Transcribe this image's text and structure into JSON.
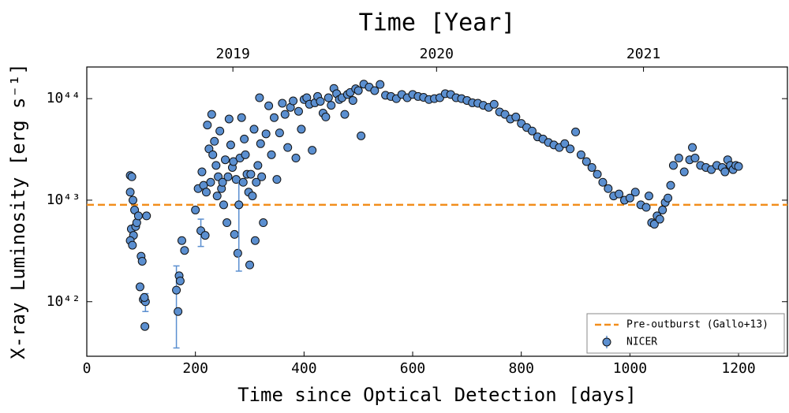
{
  "chart_data": {
    "type": "scatter",
    "title": "Time [Year]",
    "x_label": "Time since Optical Detection [days]",
    "y_label": "X-ray Luminosity [erg s⁻¹]",
    "log_y": true,
    "xlim": [
      0,
      1290
    ],
    "ylim": [
      2.9e+41,
      2.05e+44
    ],
    "xticks": [
      0,
      200,
      400,
      600,
      800,
      1000,
      1200
    ],
    "yticks": [
      {
        "value": 1e+42,
        "label": "10⁴²"
      },
      {
        "value": 1e+43,
        "label": "10⁴³"
      },
      {
        "value": 1e+44,
        "label": "10⁴⁴"
      }
    ],
    "top_ticks": [
      {
        "value": 269,
        "label": "2019"
      },
      {
        "value": 644,
        "label": "2020"
      },
      {
        "value": 1025,
        "label": "2021"
      }
    ],
    "legend": "lower right",
    "hline": {
      "value": 9e+42,
      "label": "Pre-outburst (Gallo+13)",
      "color": "#f28e1c"
    },
    "series": [
      {
        "name": "NICER",
        "color": "#5b8fd0",
        "x": [
          80,
          83,
          80,
          85,
          88,
          82,
          86,
          80,
          84,
          90,
          92,
          95,
          100,
          102,
          98,
          104,
          108,
          107,
          110,
          106,
          165,
          168,
          170,
          172,
          175,
          180,
          200,
          205,
          210,
          212,
          215,
          218,
          220,
          222,
          225,
          228,
          230,
          232,
          235,
          238,
          240,
          242,
          245,
          248,
          250,
          252,
          255,
          258,
          260,
          262,
          265,
          268,
          270,
          272,
          275,
          278,
          280,
          282,
          285,
          288,
          290,
          292,
          295,
          298,
          300,
          302,
          305,
          308,
          310,
          312,
          315,
          318,
          320,
          322,
          325,
          330,
          335,
          340,
          345,
          350,
          355,
          360,
          365,
          370,
          375,
          380,
          385,
          390,
          395,
          400,
          405,
          410,
          415,
          420,
          425,
          430,
          435,
          440,
          445,
          450,
          455,
          460,
          465,
          470,
          475,
          480,
          485,
          490,
          495,
          500,
          505,
          510,
          520,
          530,
          540,
          550,
          560,
          570,
          580,
          590,
          600,
          610,
          620,
          630,
          640,
          650,
          660,
          670,
          680,
          690,
          700,
          710,
          720,
          730,
          740,
          750,
          760,
          770,
          780,
          790,
          800,
          810,
          820,
          830,
          840,
          850,
          860,
          870,
          880,
          890,
          900,
          910,
          920,
          930,
          940,
          950,
          960,
          970,
          980,
          990,
          1000,
          1010,
          1020,
          1030,
          1035,
          1040,
          1045,
          1050,
          1055,
          1060,
          1065,
          1070,
          1075,
          1080,
          1090,
          1100,
          1110,
          1115,
          1120,
          1130,
          1140,
          1150,
          1160,
          1170,
          1175,
          1180,
          1185,
          1190,
          1195,
          1200
        ],
        "values": [
          1.75e+43,
          1.7e+43,
          1.2e+43,
          1e+43,
          8e+42,
          5.2e+42,
          4.5e+42,
          4e+42,
          3.6e+42,
          5.5e+42,
          6e+42,
          7e+42,
          2.8e+42,
          2.5e+42,
          1.4e+42,
          1.05e+42,
          1e+42,
          5.7e+41,
          7e+42,
          1.1e+42,
          1.3e+42,
          8e+41,
          1.8e+42,
          1.6e+42,
          4e+42,
          3.2e+42,
          8e+42,
          1.3e+43,
          5e+42,
          1.9e+43,
          1.4e+43,
          4.5e+42,
          1.2e+43,
          5.5e+43,
          3.2e+43,
          1.5e+43,
          7e+43,
          2.8e+43,
          3.8e+43,
          2.2e+43,
          1.1e+43,
          1.7e+43,
          4.8e+43,
          1.3e+43,
          1.5e+43,
          9e+42,
          2.5e+43,
          6e+42,
          1.7e+43,
          6.3e+43,
          3.5e+43,
          2.1e+43,
          2.4e+43,
          4.6e+42,
          1.6e+43,
          3e+42,
          9e+42,
          2.6e+43,
          6.5e+43,
          1.5e+43,
          4e+43,
          2.8e+43,
          1.8e+43,
          1.2e+43,
          2.3e+42,
          1.8e+43,
          1.1e+43,
          5e+43,
          4e+42,
          1.5e+43,
          2.2e+43,
          1.02e+44,
          3.6e+43,
          1.7e+43,
          6e+42,
          4.5e+43,
          8.5e+43,
          2.8e+43,
          6.5e+43,
          1.6e+43,
          4.6e+43,
          9e+43,
          7e+43,
          3.3e+43,
          8.2e+43,
          9.5e+43,
          2.6e+43,
          7.5e+43,
          5e+43,
          9.8e+43,
          1.02e+44,
          8.8e+43,
          3.1e+43,
          9.1e+43,
          1.05e+44,
          9.4e+43,
          7.2e+43,
          6.6e+43,
          1.02e+44,
          8.6e+43,
          1.26e+44,
          1.12e+44,
          9.8e+43,
          1.02e+44,
          7e+43,
          1.1e+44,
          1.15e+44,
          9.6e+43,
          1.25e+44,
          1.2e+44,
          4.3e+43,
          1.39e+44,
          1.3e+44,
          1.2e+44,
          1.38e+44,
          1.08e+44,
          1.05e+44,
          1e+44,
          1.1e+44,
          1.02e+44,
          1.1e+44,
          1.05e+44,
          1.03e+44,
          9.8e+43,
          1e+44,
          1.02e+44,
          1.12e+44,
          1.1e+44,
          1.02e+44,
          1e+44,
          9.6e+43,
          9.1e+43,
          9e+43,
          8.6e+43,
          8.2e+43,
          8.8e+43,
          7.4e+43,
          7e+43,
          6.3e+43,
          6.6e+43,
          5.7e+43,
          5.2e+43,
          4.8e+43,
          4.2e+43,
          4e+43,
          3.7e+43,
          3.5e+43,
          3.3e+43,
          3.6e+43,
          3.2e+43,
          4.7e+43,
          2.8e+43,
          2.4e+43,
          2.1e+43,
          1.8e+43,
          1.5e+43,
          1.3e+43,
          1.1e+43,
          1.15e+43,
          1e+43,
          1.05e+43,
          1.2e+43,
          9e+42,
          8.5e+42,
          1.1e+43,
          6e+42,
          5.8e+42,
          7e+42,
          6.5e+42,
          8e+42,
          9.5e+42,
          1.05e+43,
          1.4e+43,
          2.2e+43,
          2.6e+43,
          1.9e+43,
          2.5e+43,
          3.3e+43,
          2.6e+43,
          2.2e+43,
          2.1e+43,
          2e+43,
          2.2e+43,
          2.1e+43,
          1.9e+43,
          2.5e+43,
          2.2e+43,
          2e+43,
          2.2e+43,
          2.15e+43
        ],
        "errors": [
          null,
          null,
          null,
          null,
          null,
          null,
          null,
          null,
          null,
          null,
          null,
          null,
          null,
          null,
          null,
          null,
          2e+41,
          null,
          null,
          null,
          9.5e+41,
          null,
          null,
          null,
          null,
          null,
          null,
          null,
          1.5e+42,
          null,
          null,
          null,
          null,
          null,
          null,
          null,
          null,
          null,
          null,
          null,
          null,
          null,
          null,
          null,
          null,
          null,
          null,
          null,
          null,
          null,
          null,
          null,
          null,
          null,
          null,
          null,
          7e+42,
          null,
          null,
          null,
          null,
          null,
          null,
          null,
          null,
          null,
          null,
          null,
          null,
          null,
          null,
          null,
          8e+41,
          null,
          null,
          null,
          null,
          null,
          null,
          null,
          null,
          null,
          null,
          null,
          null,
          null,
          null,
          null,
          null,
          null,
          null,
          null,
          null,
          null,
          null,
          null,
          null,
          null,
          null,
          null,
          null,
          null,
          null,
          null,
          null,
          null,
          null,
          null,
          null,
          null,
          null,
          null,
          null,
          null,
          null,
          null,
          null,
          null,
          null,
          null,
          null,
          null,
          null,
          null,
          null,
          null,
          null,
          null,
          null,
          null,
          null,
          null,
          null,
          null,
          null,
          null,
          null,
          null,
          null,
          null,
          null,
          null,
          null,
          null,
          null,
          null,
          null,
          null,
          null,
          null,
          null,
          null,
          null,
          null,
          null,
          null,
          null,
          null,
          null,
          null,
          null,
          null,
          null,
          null,
          null,
          null,
          null,
          null,
          null,
          null,
          null,
          null,
          null,
          null,
          null,
          null,
          null,
          null,
          null,
          null,
          null,
          null,
          null,
          null,
          null,
          null,
          null,
          null,
          null,
          null
        ]
      }
    ]
  }
}
